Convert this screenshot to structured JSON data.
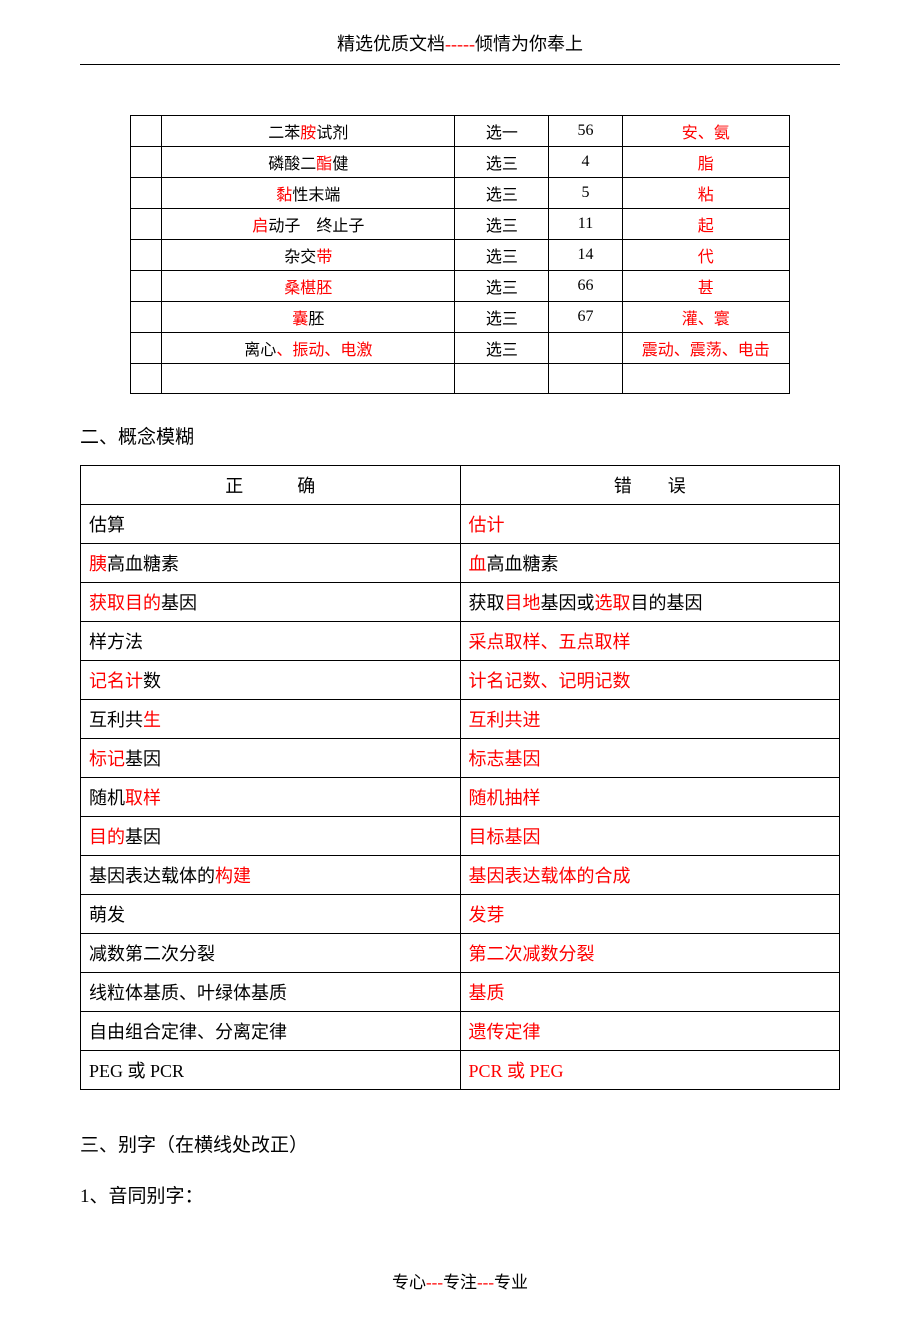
{
  "header": {
    "prefix": "精选优质文档",
    "dashes": "-----",
    "suffix": "倾情为你奉上"
  },
  "footer": {
    "p1": "专心",
    "d1": "---",
    "p2": "专注",
    "d2": "---",
    "p3": "专业"
  },
  "table1": {
    "rows": [
      {
        "c2": [
          {
            "t": "二苯",
            "c": "black"
          },
          {
            "t": "胺",
            "c": "red"
          },
          {
            "t": "试剂",
            "c": "black"
          }
        ],
        "c3": "选一",
        "c4": "56",
        "c5": [
          {
            "t": "安、氨",
            "c": "red"
          }
        ]
      },
      {
        "c2": [
          {
            "t": "磷酸二",
            "c": "black"
          },
          {
            "t": "酯",
            "c": "red"
          },
          {
            "t": "健",
            "c": "black"
          }
        ],
        "c3": "选三",
        "c4": "4",
        "c5": [
          {
            "t": "脂",
            "c": "red"
          }
        ]
      },
      {
        "c2": [
          {
            "t": "黏",
            "c": "red"
          },
          {
            "t": "性末端",
            "c": "black"
          }
        ],
        "c3": "选三",
        "c4": "5",
        "c5": [
          {
            "t": "粘",
            "c": "red"
          }
        ]
      },
      {
        "c2": [
          {
            "t": "启",
            "c": "red"
          },
          {
            "t": "动子　终止子",
            "c": "black"
          }
        ],
        "c3": "选三",
        "c4": "11",
        "c5": [
          {
            "t": "起",
            "c": "red"
          }
        ]
      },
      {
        "c2": [
          {
            "t": "杂交",
            "c": "black"
          },
          {
            "t": "带",
            "c": "red"
          }
        ],
        "c3": "选三",
        "c4": "14",
        "c5": [
          {
            "t": "代",
            "c": "red"
          }
        ]
      },
      {
        "c2": [
          {
            "t": "桑椹胚",
            "c": "red"
          }
        ],
        "c3": "选三",
        "c4": "66",
        "c5": [
          {
            "t": "甚",
            "c": "red"
          }
        ]
      },
      {
        "c2": [
          {
            "t": "囊",
            "c": "red"
          },
          {
            "t": "胚",
            "c": "black"
          }
        ],
        "c3": "选三",
        "c4": "67",
        "c5": [
          {
            "t": "灌、寰",
            "c": "red"
          }
        ]
      },
      {
        "c2": [
          {
            "t": "离心",
            "c": "black"
          },
          {
            "t": "、振动、电激",
            "c": "red"
          }
        ],
        "c3": "选三",
        "c4": "",
        "c5": [
          {
            "t": "震动、震荡、电击",
            "c": "red"
          }
        ]
      }
    ]
  },
  "section2": {
    "title": "二、概念模糊",
    "headers": {
      "h1a": "正",
      "h1b": "确",
      "h2a": "错",
      "h2b": "误"
    },
    "rows": [
      {
        "left": [
          {
            "t": "估算",
            "c": "black"
          }
        ],
        "right": [
          {
            "t": "估计",
            "c": "red"
          }
        ]
      },
      {
        "left": [
          {
            "t": "胰",
            "c": "red"
          },
          {
            "t": "高血糖素",
            "c": "black"
          }
        ],
        "right": [
          {
            "t": "血",
            "c": "red"
          },
          {
            "t": "高血糖素",
            "c": "black"
          }
        ]
      },
      {
        "left": [
          {
            "t": "获取目的",
            "c": "red"
          },
          {
            "t": "基因",
            "c": "black"
          }
        ],
        "right": [
          {
            "t": "获取",
            "c": "black"
          },
          {
            "t": "目地",
            "c": "red"
          },
          {
            "t": "基因或",
            "c": "black"
          },
          {
            "t": "选取",
            "c": "red"
          },
          {
            "t": "目的基因",
            "c": "black"
          }
        ]
      },
      {
        "left": [
          {
            "t": "样方法",
            "c": "black"
          }
        ],
        "right": [
          {
            "t": "采点取样、五点取样",
            "c": "red"
          }
        ]
      },
      {
        "left": [
          {
            "t": "记名计",
            "c": "red"
          },
          {
            "t": "数",
            "c": "black"
          }
        ],
        "right": [
          {
            "t": "计名记数、记明记数",
            "c": "red"
          }
        ]
      },
      {
        "left": [
          {
            "t": "互利共",
            "c": "black"
          },
          {
            "t": "生",
            "c": "red"
          }
        ],
        "right": [
          {
            "t": "互利共进",
            "c": "red"
          }
        ]
      },
      {
        "left": [
          {
            "t": "标记",
            "c": "red"
          },
          {
            "t": "基因",
            "c": "black"
          }
        ],
        "right": [
          {
            "t": "标志基因",
            "c": "red"
          }
        ]
      },
      {
        "left": [
          {
            "t": "随机",
            "c": "black"
          },
          {
            "t": "取样",
            "c": "red"
          }
        ],
        "right": [
          {
            "t": "随机抽样",
            "c": "red"
          }
        ]
      },
      {
        "left": [
          {
            "t": "目的",
            "c": "red"
          },
          {
            "t": "基因",
            "c": "black"
          }
        ],
        "right": [
          {
            "t": "目标基因",
            "c": "red"
          }
        ]
      },
      {
        "left": [
          {
            "t": "基因表达载体的",
            "c": "black"
          },
          {
            "t": "构建",
            "c": "red"
          }
        ],
        "right": [
          {
            "t": "基因表达载体的合成",
            "c": "red"
          }
        ]
      },
      {
        "left": [
          {
            "t": "萌发",
            "c": "black"
          }
        ],
        "right": [
          {
            "t": "发芽",
            "c": "red"
          }
        ]
      },
      {
        "left": [
          {
            "t": "减数第二次分裂",
            "c": "black"
          }
        ],
        "right": [
          {
            "t": "第二次减数分裂",
            "c": "red"
          }
        ]
      },
      {
        "left": [
          {
            "t": "线粒体基质、叶绿体基质",
            "c": "black"
          }
        ],
        "right": [
          {
            "t": "基质",
            "c": "red"
          }
        ]
      },
      {
        "left": [
          {
            "t": "自由组合定律、分离定律",
            "c": "black"
          }
        ],
        "right": [
          {
            "t": "遗传定律",
            "c": "red"
          }
        ]
      },
      {
        "left": [
          {
            "t": "PEG 或 PCR",
            "c": "black"
          }
        ],
        "right": [
          {
            "t": "PCR 或 PEG",
            "c": "red"
          }
        ]
      }
    ]
  },
  "section3": {
    "title": "三、别字（在横线处改正）",
    "item1": "1、音同别字："
  }
}
